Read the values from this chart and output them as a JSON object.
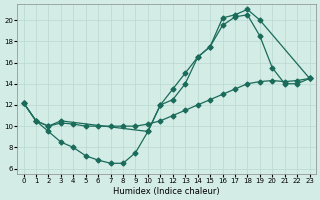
{
  "xlabel": "Humidex (Indice chaleur)",
  "xlim": [
    -0.5,
    23.5
  ],
  "ylim": [
    5.5,
    21.5
  ],
  "yticks": [
    6,
    8,
    10,
    12,
    14,
    16,
    18,
    20
  ],
  "xticks": [
    0,
    1,
    2,
    3,
    4,
    5,
    6,
    7,
    8,
    9,
    10,
    11,
    12,
    13,
    14,
    15,
    16,
    17,
    18,
    19,
    20,
    21,
    22,
    23
  ],
  "bg_color": "#d4ece6",
  "line_color": "#1a6b5a",
  "grid_color": "#b8d8d0",
  "line1_x": [
    0,
    1,
    2,
    3,
    10,
    11,
    12,
    13,
    14,
    15,
    16,
    17,
    18,
    19,
    23
  ],
  "line1_y": [
    12.2,
    10.5,
    10.0,
    10.5,
    9.5,
    12.0,
    13.5,
    15.0,
    16.5,
    17.5,
    20.2,
    20.5,
    21.0,
    20.0,
    14.5
  ],
  "line2_x": [
    0,
    1,
    2,
    3,
    4,
    5,
    6,
    7,
    8,
    9,
    10,
    11,
    12,
    13,
    14,
    15,
    16,
    17,
    18,
    19,
    20,
    21,
    22,
    23
  ],
  "line2_y": [
    12.2,
    10.5,
    10.0,
    10.3,
    10.2,
    10.0,
    10.0,
    10.0,
    10.0,
    10.0,
    10.2,
    10.5,
    11.0,
    11.5,
    12.0,
    12.5,
    13.0,
    13.5,
    14.0,
    14.2,
    14.3,
    14.2,
    14.3,
    14.5
  ],
  "line3_x": [
    0,
    1,
    2,
    3,
    4,
    5,
    6,
    7,
    8,
    9,
    10,
    11,
    12,
    13,
    14,
    15,
    16,
    17,
    18,
    19,
    20,
    21,
    22,
    23
  ],
  "line3_y": [
    12.2,
    10.5,
    9.5,
    8.5,
    8.0,
    7.2,
    6.8,
    6.5,
    6.5,
    7.5,
    9.5,
    12.0,
    12.5,
    14.0,
    16.5,
    17.5,
    19.5,
    20.3,
    20.5,
    18.5,
    15.5,
    14.0,
    14.0,
    14.5
  ]
}
